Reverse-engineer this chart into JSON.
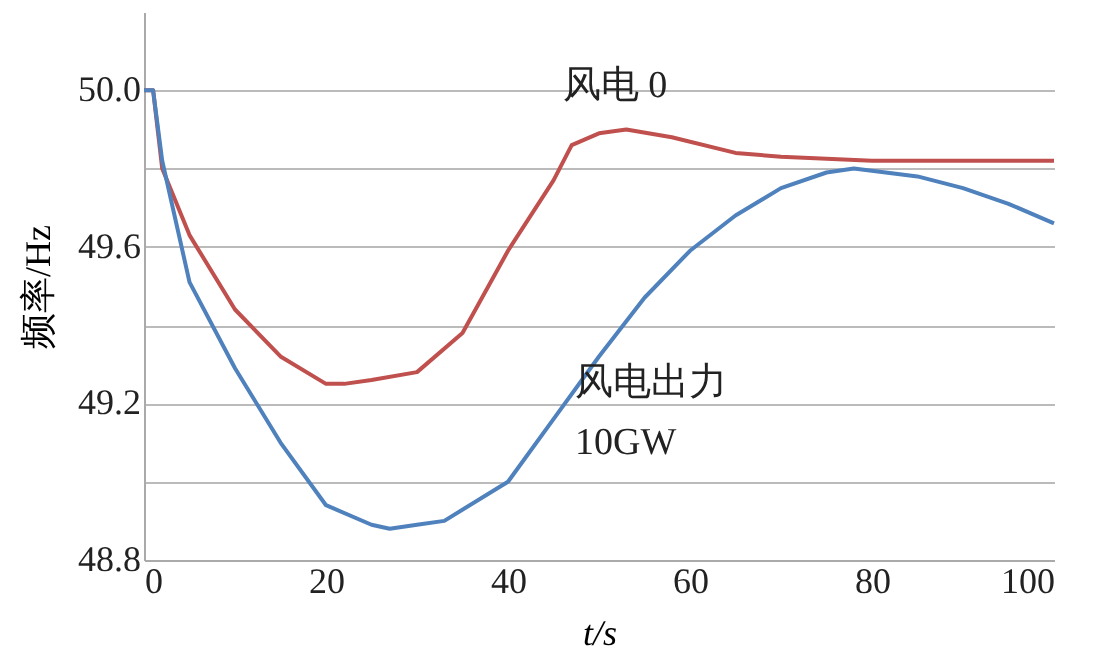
{
  "chart_data": {
    "type": "line",
    "xlabel": "t/s",
    "ylabel": "频率/Hz",
    "xlim": [
      0,
      100
    ],
    "xticks": [
      0,
      20,
      40,
      60,
      80,
      100
    ],
    "ylim": [
      48.8,
      50.2
    ],
    "yticks": [
      48.8,
      {
        "value": 49.0,
        "label": null
      },
      49.2,
      {
        "value": 49.4,
        "label": null
      },
      49.6,
      {
        "value": 49.8,
        "label": null
      },
      {
        "value": 50.0,
        "label": "50.0"
      }
    ],
    "grid": "y",
    "marker": "none",
    "line_style": "solid",
    "series": [
      {
        "name": "风电 0",
        "color": "#c0504d",
        "x": [
          0,
          1,
          2,
          5,
          10,
          15,
          20,
          22,
          25,
          30,
          35,
          40,
          45,
          47,
          50,
          53,
          58,
          65,
          70,
          80,
          90,
          100
        ],
        "values": [
          50.0,
          50.0,
          49.8,
          49.63,
          49.44,
          49.32,
          49.25,
          49.25,
          49.26,
          49.28,
          49.38,
          49.59,
          49.77,
          49.86,
          49.89,
          49.9,
          49.88,
          49.84,
          49.83,
          49.82,
          49.82,
          49.82
        ]
      },
      {
        "name": "风电出力\n10GW",
        "color": "#4f81bd",
        "x": [
          0,
          1,
          2,
          5,
          10,
          15,
          20,
          25,
          27,
          30,
          33,
          40,
          45,
          50,
          55,
          60,
          65,
          70,
          75,
          78,
          85,
          90,
          95,
          100
        ],
        "values": [
          50.0,
          50.0,
          49.82,
          49.51,
          49.29,
          49.1,
          48.94,
          48.89,
          48.88,
          48.89,
          48.9,
          49.0,
          49.16,
          49.32,
          49.47,
          49.59,
          49.68,
          49.75,
          49.79,
          49.8,
          49.78,
          49.75,
          49.71,
          49.66
        ]
      }
    ]
  }
}
